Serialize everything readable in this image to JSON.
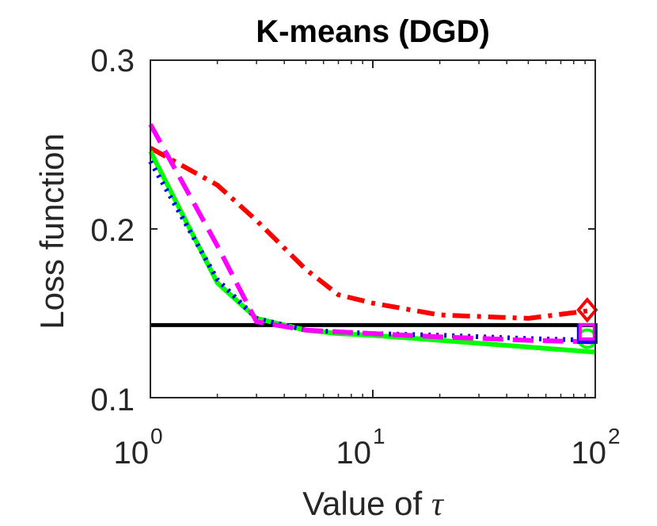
{
  "chart_data": {
    "type": "line",
    "title": "K-means (DGD)",
    "ylabel": "Loss function",
    "xlabel_prefix": "Value of",
    "xlabel_symbol": "τ",
    "xscale": "log",
    "xlim": [
      1,
      100
    ],
    "ylim": [
      0.1,
      0.3
    ],
    "ytick_labels": [
      "0.1",
      "0.2",
      "0.3"
    ],
    "ytick_values": [
      0.1,
      0.2,
      0.3
    ],
    "xtick_values": [
      1,
      10,
      100
    ],
    "xtick_bases": [
      "10",
      "10",
      "10"
    ],
    "xtick_exponents": [
      "0",
      "1",
      "2"
    ],
    "grid": false,
    "series": [
      {
        "name": "baseline",
        "color": "#000000",
        "style": "solid",
        "width": 5,
        "x": [
          1,
          100
        ],
        "y": [
          0.143,
          0.143
        ]
      },
      {
        "name": "red",
        "color": "#ff0000",
        "style": "dashdot",
        "width": 6,
        "x": [
          1,
          2,
          3,
          5,
          7,
          10,
          20,
          50,
          100
        ],
        "y": [
          0.248,
          0.226,
          0.205,
          0.176,
          0.161,
          0.156,
          0.149,
          0.147,
          0.152
        ],
        "marker": {
          "shape": "diamond",
          "x": 92,
          "y": 0.152
        }
      },
      {
        "name": "green",
        "color": "#00ff00",
        "style": "solid",
        "width": 6,
        "x": [
          1,
          2,
          3,
          5,
          7,
          10,
          20,
          50,
          100
        ],
        "y": [
          0.246,
          0.168,
          0.147,
          0.14,
          0.138,
          0.137,
          0.134,
          0.13,
          0.127
        ],
        "marker": {
          "shape": "circle",
          "x": 92,
          "y": 0.135
        }
      },
      {
        "name": "blue",
        "color": "#0000ff",
        "style": "dotted",
        "width": 6,
        "x": [
          1,
          2,
          3,
          5,
          7,
          10,
          20,
          50,
          100
        ],
        "y": [
          0.24,
          0.17,
          0.147,
          0.14,
          0.139,
          0.138,
          0.137,
          0.135,
          0.134
        ],
        "marker": {
          "shape": "square",
          "x": 92,
          "y": 0.138
        }
      },
      {
        "name": "magenta",
        "color": "#ff00ff",
        "style": "dashed",
        "width": 6,
        "x": [
          1,
          2,
          3,
          5,
          7,
          10,
          20,
          50,
          100
        ],
        "y": [
          0.262,
          0.19,
          0.145,
          0.14,
          0.139,
          0.138,
          0.136,
          0.134,
          0.133
        ],
        "marker": {
          "shape": "square",
          "x": 92,
          "y": 0.139
        }
      }
    ]
  }
}
